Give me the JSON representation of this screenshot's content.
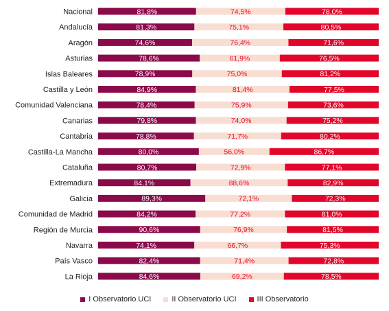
{
  "chart_data": {
    "type": "bar",
    "stacking": "100%",
    "orientation": "horizontal",
    "categories": [
      "Nacional",
      "Andalucía",
      "Aragón",
      "Asturias",
      "Islas Baleares",
      "Castilla y León",
      "Comunidad Valenciana",
      "Canarias",
      "Cantabria",
      "Castilla-La Mancha",
      "Cataluña",
      "Extremadura",
      "Galicia",
      "Comunidad de Madrid",
      "Región de Murcia",
      "Navarra",
      "País Vasco",
      "La Rioja"
    ],
    "series": [
      {
        "name": "I Observatorio UCI",
        "color": "#8B0A4A",
        "label_color": "#ffffff",
        "values": [
          81.8,
          81.3,
          74.6,
          78.6,
          78.9,
          84.9,
          78.4,
          79.8,
          78.8,
          80.0,
          80.7,
          84.1,
          89.3,
          84.2,
          90.6,
          74.1,
          82.4,
          84.6
        ],
        "labels": [
          "81,8%",
          "81,3%",
          "74,6%",
          "78,6%",
          "78,9%",
          "84,9%",
          "78,4%",
          "79,8%",
          "78,8%",
          "80,0%",
          "80,7%",
          "84,1%",
          "89,3%",
          "84,2%",
          "90,6%",
          "74,1%",
          "82,4%",
          "84,6%"
        ]
      },
      {
        "name": "II Observatorio UCI",
        "color": "#F8DDD3",
        "label_color": "#E8102E",
        "values": [
          74.5,
          75.1,
          76.4,
          61.9,
          75.0,
          81.4,
          75.9,
          74.0,
          71.7,
          56.0,
          72.9,
          88.6,
          72.1,
          77.2,
          76.9,
          66.7,
          71.4,
          69.2
        ],
        "labels": [
          "74,5%",
          "75,1%",
          "76,4%",
          "61,9%",
          "75,0%",
          "81,4%",
          "75,9%",
          "74,0%",
          "71,7%",
          "56,0%",
          "72,9%",
          "88,6%",
          "72,1%",
          "77,2%",
          "76,9%",
          "66,7%",
          "71,4%",
          "69,2%"
        ]
      },
      {
        "name": "III Observatorio",
        "color": "#E2062A",
        "label_color": "#ffffff",
        "values": [
          78.0,
          80.5,
          71.6,
          76.5,
          81.2,
          77.5,
          73.6,
          75.2,
          80.2,
          86.7,
          77.1,
          82.9,
          72.3,
          81.0,
          81.5,
          75.3,
          72.8,
          78.5
        ],
        "labels": [
          "78,0%",
          "80,5%",
          "71,6%",
          "76,5%",
          "81,2%",
          "77,5%",
          "73,6%",
          "75,2%",
          "80,2%",
          "86,7%",
          "77,1%",
          "82,9%",
          "72,3%",
          "81,0%",
          "81,5%",
          "75,3%",
          "72,8%",
          "78,5%"
        ]
      }
    ],
    "title": "",
    "xlabel": "",
    "ylabel": "",
    "grid": false,
    "legend_position": "bottom"
  }
}
